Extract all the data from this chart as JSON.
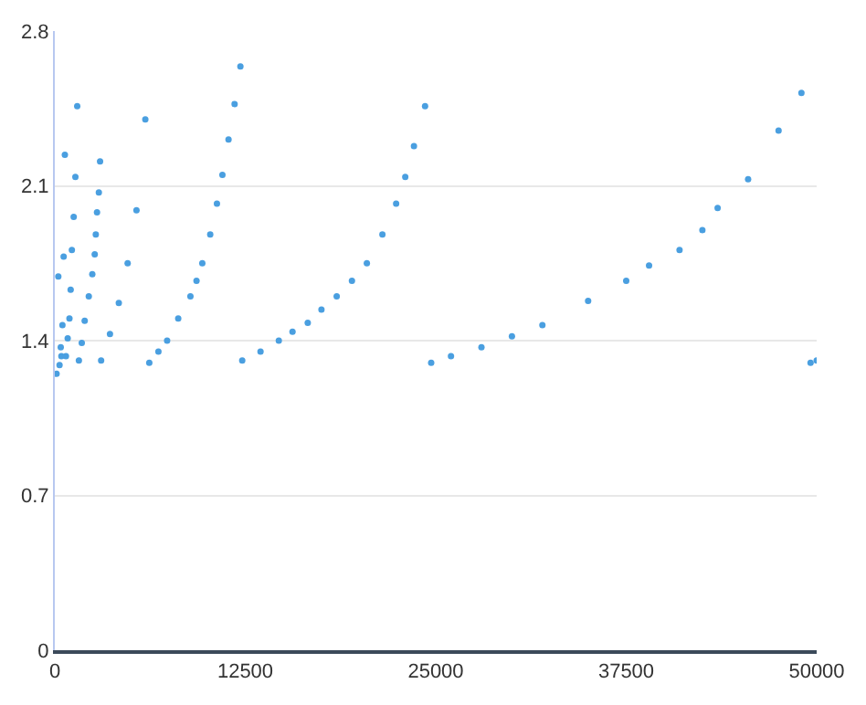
{
  "chart_data": {
    "type": "scatter",
    "marker": "circle",
    "grid": "y",
    "xlim": [
      0,
      50000
    ],
    "ylim": [
      0,
      2.8
    ],
    "xticks": [
      0,
      12500,
      25000,
      37500,
      50000
    ],
    "yticks": [
      0,
      0.7,
      1.4,
      2.1,
      2.8
    ],
    "series": [
      {
        "color": "#4a9fe0",
        "x": [
          115,
          230,
          310,
          390,
          430,
          500,
          580,
          660,
          730,
          845,
          960,
          1040,
          1120,
          1240,
          1350,
          1470,
          1580,
          1770,
          1960,
          2230,
          2460,
          2620,
          2690,
          2770,
          2890,
          2970,
          3040,
          3620,
          4200,
          4780,
          5360,
          5940,
          6200,
          6800,
          7370,
          8100,
          8900,
          9300,
          9680,
          10200,
          10640,
          11000,
          11400,
          11800,
          12180,
          12300,
          13500,
          14700,
          15600,
          16600,
          17500,
          18500,
          19500,
          20480,
          21500,
          22400,
          23000,
          23570,
          24300,
          24700,
          26000,
          28000,
          30000,
          32000,
          35000,
          37500,
          39000,
          41000,
          42500,
          43500,
          45500,
          47500,
          49000,
          49600,
          50000
        ],
        "values": [
          1.25,
          1.69,
          1.29,
          1.37,
          1.33,
          1.47,
          1.78,
          2.24,
          1.33,
          1.41,
          1.5,
          1.63,
          1.81,
          1.96,
          2.14,
          2.46,
          1.31,
          1.39,
          1.49,
          1.6,
          1.7,
          1.79,
          1.88,
          1.98,
          2.07,
          2.21,
          1.31,
          1.43,
          1.57,
          1.75,
          1.99,
          2.4,
          1.3,
          1.35,
          1.4,
          1.5,
          1.6,
          1.67,
          1.75,
          1.88,
          2.02,
          2.15,
          2.31,
          2.47,
          2.64,
          1.31,
          1.35,
          1.4,
          1.44,
          1.48,
          1.54,
          1.6,
          1.67,
          1.75,
          1.88,
          2.02,
          2.14,
          2.28,
          2.46,
          1.3,
          1.33,
          1.37,
          1.42,
          1.47,
          1.58,
          1.67,
          1.74,
          1.81,
          1.9,
          2.0,
          2.13,
          2.35,
          2.52,
          1.3,
          1.31
        ]
      }
    ]
  }
}
